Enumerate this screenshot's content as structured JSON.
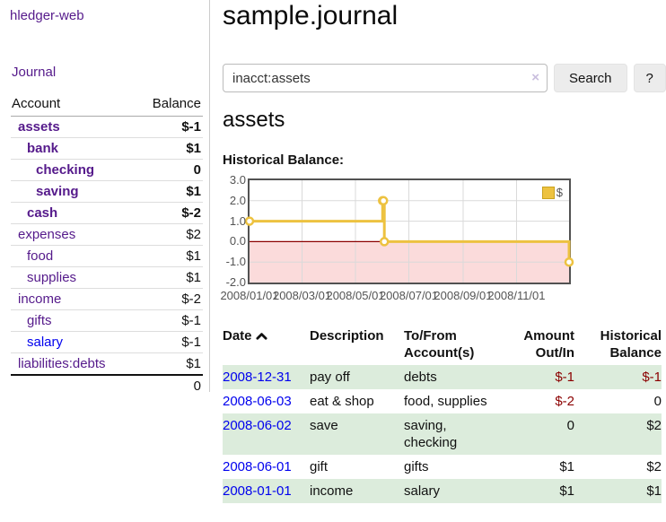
{
  "colors": {
    "link_purple": "#551a8b",
    "link_blue": "#0000ee",
    "negative_strong": "#8b0000",
    "negative_soft": "#be7e7e",
    "row_green": "#dcecdc",
    "chart_gold": "#edc240",
    "chart_negative_region": "#fbdbdb",
    "chart_zero_line": "#8b0000",
    "axis_text": "#545454"
  },
  "brand": "hledger-web",
  "sidebar": {
    "journal_link": "Journal",
    "header": {
      "account": "Account",
      "balance": "Balance"
    },
    "accounts": [
      {
        "name": "assets",
        "level": 1,
        "balance": "$-1",
        "bold": true,
        "neg": "strong",
        "color": "purple"
      },
      {
        "name": "bank",
        "level": 2,
        "balance": "$1",
        "bold": true,
        "neg": "none",
        "color": "purple"
      },
      {
        "name": "checking",
        "level": 3,
        "balance": "0",
        "bold": true,
        "neg": "none",
        "color": "purple"
      },
      {
        "name": "saving",
        "level": 3,
        "balance": "$1",
        "bold": true,
        "neg": "none",
        "color": "purple"
      },
      {
        "name": "cash",
        "level": 2,
        "balance": "$-2",
        "bold": true,
        "neg": "strong",
        "color": "purple"
      },
      {
        "name": "expenses",
        "level": 1,
        "balance": "$2",
        "bold": false,
        "neg": "none",
        "color": "purple"
      },
      {
        "name": "food",
        "level": 2,
        "balance": "$1",
        "bold": false,
        "neg": "none",
        "color": "purple"
      },
      {
        "name": "supplies",
        "level": 2,
        "balance": "$1",
        "bold": false,
        "neg": "none",
        "color": "purple"
      },
      {
        "name": "income",
        "level": 1,
        "balance": "$-2",
        "bold": false,
        "neg": "soft",
        "color": "purple"
      },
      {
        "name": "gifts",
        "level": 2,
        "balance": "$-1",
        "bold": false,
        "neg": "soft",
        "color": "purple"
      },
      {
        "name": "salary",
        "level": 2,
        "balance": "$-1",
        "bold": false,
        "neg": "soft",
        "color": "blue"
      },
      {
        "name": "liabilities:debts",
        "level": 1,
        "balance": "$1",
        "bold": false,
        "neg": "none",
        "color": "purple"
      }
    ],
    "total": "0"
  },
  "main": {
    "title": "sample.journal",
    "search": {
      "value": "inacct:assets",
      "clear": "×",
      "search_button": "Search",
      "help_button": "?"
    },
    "account_heading": "assets",
    "chart_title": "Historical Balance:"
  },
  "chart_data": {
    "type": "line",
    "step": true,
    "title": "Historical Balance",
    "legend": [
      {
        "label": "$",
        "color": "#edc240"
      }
    ],
    "legend_position": "top-right",
    "grid": true,
    "xlim": [
      "2008-01-01",
      "2008-12-31"
    ],
    "ylim": [
      -2,
      3
    ],
    "x_ticks": [
      {
        "date": "2008-01-01",
        "label": "2008/01/01"
      },
      {
        "date": "2008-03-01",
        "label": "2008/03/01"
      },
      {
        "date": "2008-05-01",
        "label": "2008/05/01"
      },
      {
        "date": "2008-07-01",
        "label": "2008/07/01"
      },
      {
        "date": "2008-09-01",
        "label": "2008/09/01"
      },
      {
        "date": "2008-11-01",
        "label": "2008/11/01"
      }
    ],
    "y_ticks": [
      {
        "value": 3,
        "label": "3.0"
      },
      {
        "value": 2,
        "label": "2.0"
      },
      {
        "value": 1,
        "label": "1.0"
      },
      {
        "value": 0,
        "label": "0.0"
      },
      {
        "value": -1,
        "label": "-1.0"
      },
      {
        "value": -2,
        "label": "-2.0"
      }
    ],
    "series": [
      {
        "name": "$",
        "color": "#edc240",
        "marker": "circle",
        "points": [
          {
            "date": "2008-01-01",
            "value": 1
          },
          {
            "date": "2008-06-01",
            "value": 2
          },
          {
            "date": "2008-06-02",
            "value": 2
          },
          {
            "date": "2008-06-03",
            "value": 0
          },
          {
            "date": "2008-12-31",
            "value": -1
          }
        ]
      }
    ]
  },
  "register": {
    "columns": [
      "Date",
      "Description",
      "To/From Account(s)",
      "Amount Out/In",
      "Historical Balance"
    ],
    "sort_icon": "chevron-up",
    "rows": [
      {
        "date": "2008-12-31",
        "description": "pay off",
        "accounts": "debts",
        "amount": "$-1",
        "amount_neg": true,
        "balance": "$-1",
        "balance_neg": true
      },
      {
        "date": "2008-06-03",
        "description": "eat & shop",
        "accounts": "food, supplies",
        "amount": "$-2",
        "amount_neg": true,
        "balance": "0",
        "balance_neg": false
      },
      {
        "date": "2008-06-02",
        "description": "save",
        "accounts": "saving, checking",
        "amount": "0",
        "amount_neg": false,
        "balance": "$2",
        "balance_neg": false
      },
      {
        "date": "2008-06-01",
        "description": "gift",
        "accounts": "gifts",
        "amount": "$1",
        "amount_neg": false,
        "balance": "$2",
        "balance_neg": false
      },
      {
        "date": "2008-01-01",
        "description": "income",
        "accounts": "salary",
        "amount": "$1",
        "amount_neg": false,
        "balance": "$1",
        "balance_neg": false
      }
    ]
  }
}
